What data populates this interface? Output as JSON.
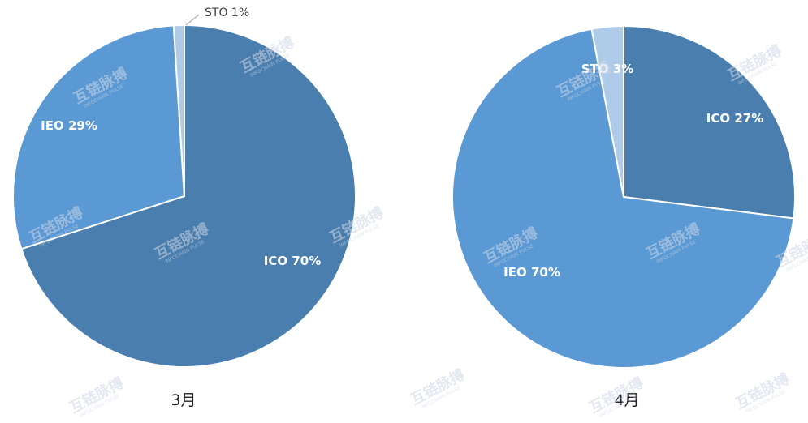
{
  "chart_data": [
    {
      "type": "pie",
      "caption": "3月",
      "slices": [
        {
          "label": "ICO",
          "value": 70,
          "text": "ICO  70%",
          "color": "#4a7eae"
        },
        {
          "label": "IEO",
          "value": 29,
          "text": "IEO  29%",
          "color": "#5a99d4"
        },
        {
          "label": "STO",
          "value": 1,
          "text": "STO  1%",
          "color": "#aecbea"
        }
      ]
    },
    {
      "type": "pie",
      "caption": "4月",
      "slices": [
        {
          "label": "ICO",
          "value": 27,
          "text": "ICO  27%",
          "color": "#4a7eae"
        },
        {
          "label": "IEO",
          "value": 70,
          "text": "IEO  70%",
          "color": "#5a99d4"
        },
        {
          "label": "STO",
          "value": 3,
          "text": "STO  3%",
          "color": "#aecbea"
        }
      ]
    }
  ],
  "watermark": {
    "text": "互链脉搏",
    "sub": "INFOCHAIN PULSE"
  }
}
